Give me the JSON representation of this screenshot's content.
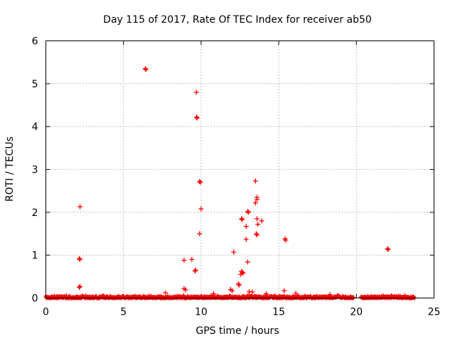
{
  "chart_data": {
    "type": "scatter",
    "title": "Day 115 of 2017, Rate Of TEC Index for receiver ab50",
    "xlabel": "GPS time / hours",
    "ylabel": "ROTI / TECUs",
    "xlim": [
      0,
      25
    ],
    "ylim": [
      0,
      6
    ],
    "xticks": [
      0,
      5,
      10,
      15,
      20,
      25
    ],
    "yticks": [
      0,
      1,
      2,
      3,
      4,
      5,
      6
    ],
    "grid": true,
    "legend": "none",
    "marker": "plus",
    "color": "#ff0000",
    "points": [
      [
        2.2,
        2.13
      ],
      [
        2.15,
        0.92
      ],
      [
        2.2,
        0.9
      ],
      [
        2.15,
        0.25
      ],
      [
        2.2,
        0.27
      ],
      [
        6.4,
        5.35
      ],
      [
        6.45,
        5.33
      ],
      [
        9.7,
        4.8
      ],
      [
        9.7,
        4.22
      ],
      [
        9.75,
        4.2
      ],
      [
        9.9,
        2.72
      ],
      [
        9.95,
        2.7
      ],
      [
        10.0,
        2.08
      ],
      [
        9.9,
        1.5
      ],
      [
        9.6,
        0.63
      ],
      [
        9.65,
        0.65
      ],
      [
        9.4,
        0.9
      ],
      [
        8.9,
        0.88
      ],
      [
        13.5,
        2.73
      ],
      [
        13.5,
        2.22
      ],
      [
        13.6,
        2.3
      ],
      [
        13.6,
        2.35
      ],
      [
        13.0,
        2.02
      ],
      [
        13.05,
        2.0
      ],
      [
        12.6,
        1.85
      ],
      [
        12.65,
        1.83
      ],
      [
        12.9,
        1.67
      ],
      [
        13.6,
        1.85
      ],
      [
        13.65,
        1.72
      ],
      [
        13.9,
        1.8
      ],
      [
        13.55,
        1.5
      ],
      [
        13.6,
        1.47
      ],
      [
        12.9,
        1.37
      ],
      [
        12.1,
        1.07
      ],
      [
        13.0,
        0.84
      ],
      [
        12.6,
        0.62
      ],
      [
        12.65,
        0.6
      ],
      [
        12.7,
        0.58
      ],
      [
        12.55,
        0.55
      ],
      [
        12.4,
        0.33
      ],
      [
        12.45,
        0.3
      ],
      [
        15.4,
        1.38
      ],
      [
        15.45,
        1.35
      ],
      [
        15.35,
        0.17
      ],
      [
        22.0,
        1.15
      ],
      [
        22.05,
        1.13
      ],
      [
        8.9,
        0.22
      ],
      [
        9.0,
        0.19
      ],
      [
        11.9,
        0.2
      ],
      [
        12.0,
        0.17
      ],
      [
        13.1,
        0.15
      ],
      [
        13.3,
        0.14
      ],
      [
        16.1,
        0.11
      ],
      [
        18.3,
        0.08
      ],
      [
        7.7,
        0.12
      ],
      [
        10.8,
        0.1
      ],
      [
        14.2,
        0.1
      ]
    ],
    "baseline_ranges": [
      [
        0,
        19.8
      ],
      [
        20.3,
        23.75
      ]
    ],
    "baseline_max": 0.07
  }
}
